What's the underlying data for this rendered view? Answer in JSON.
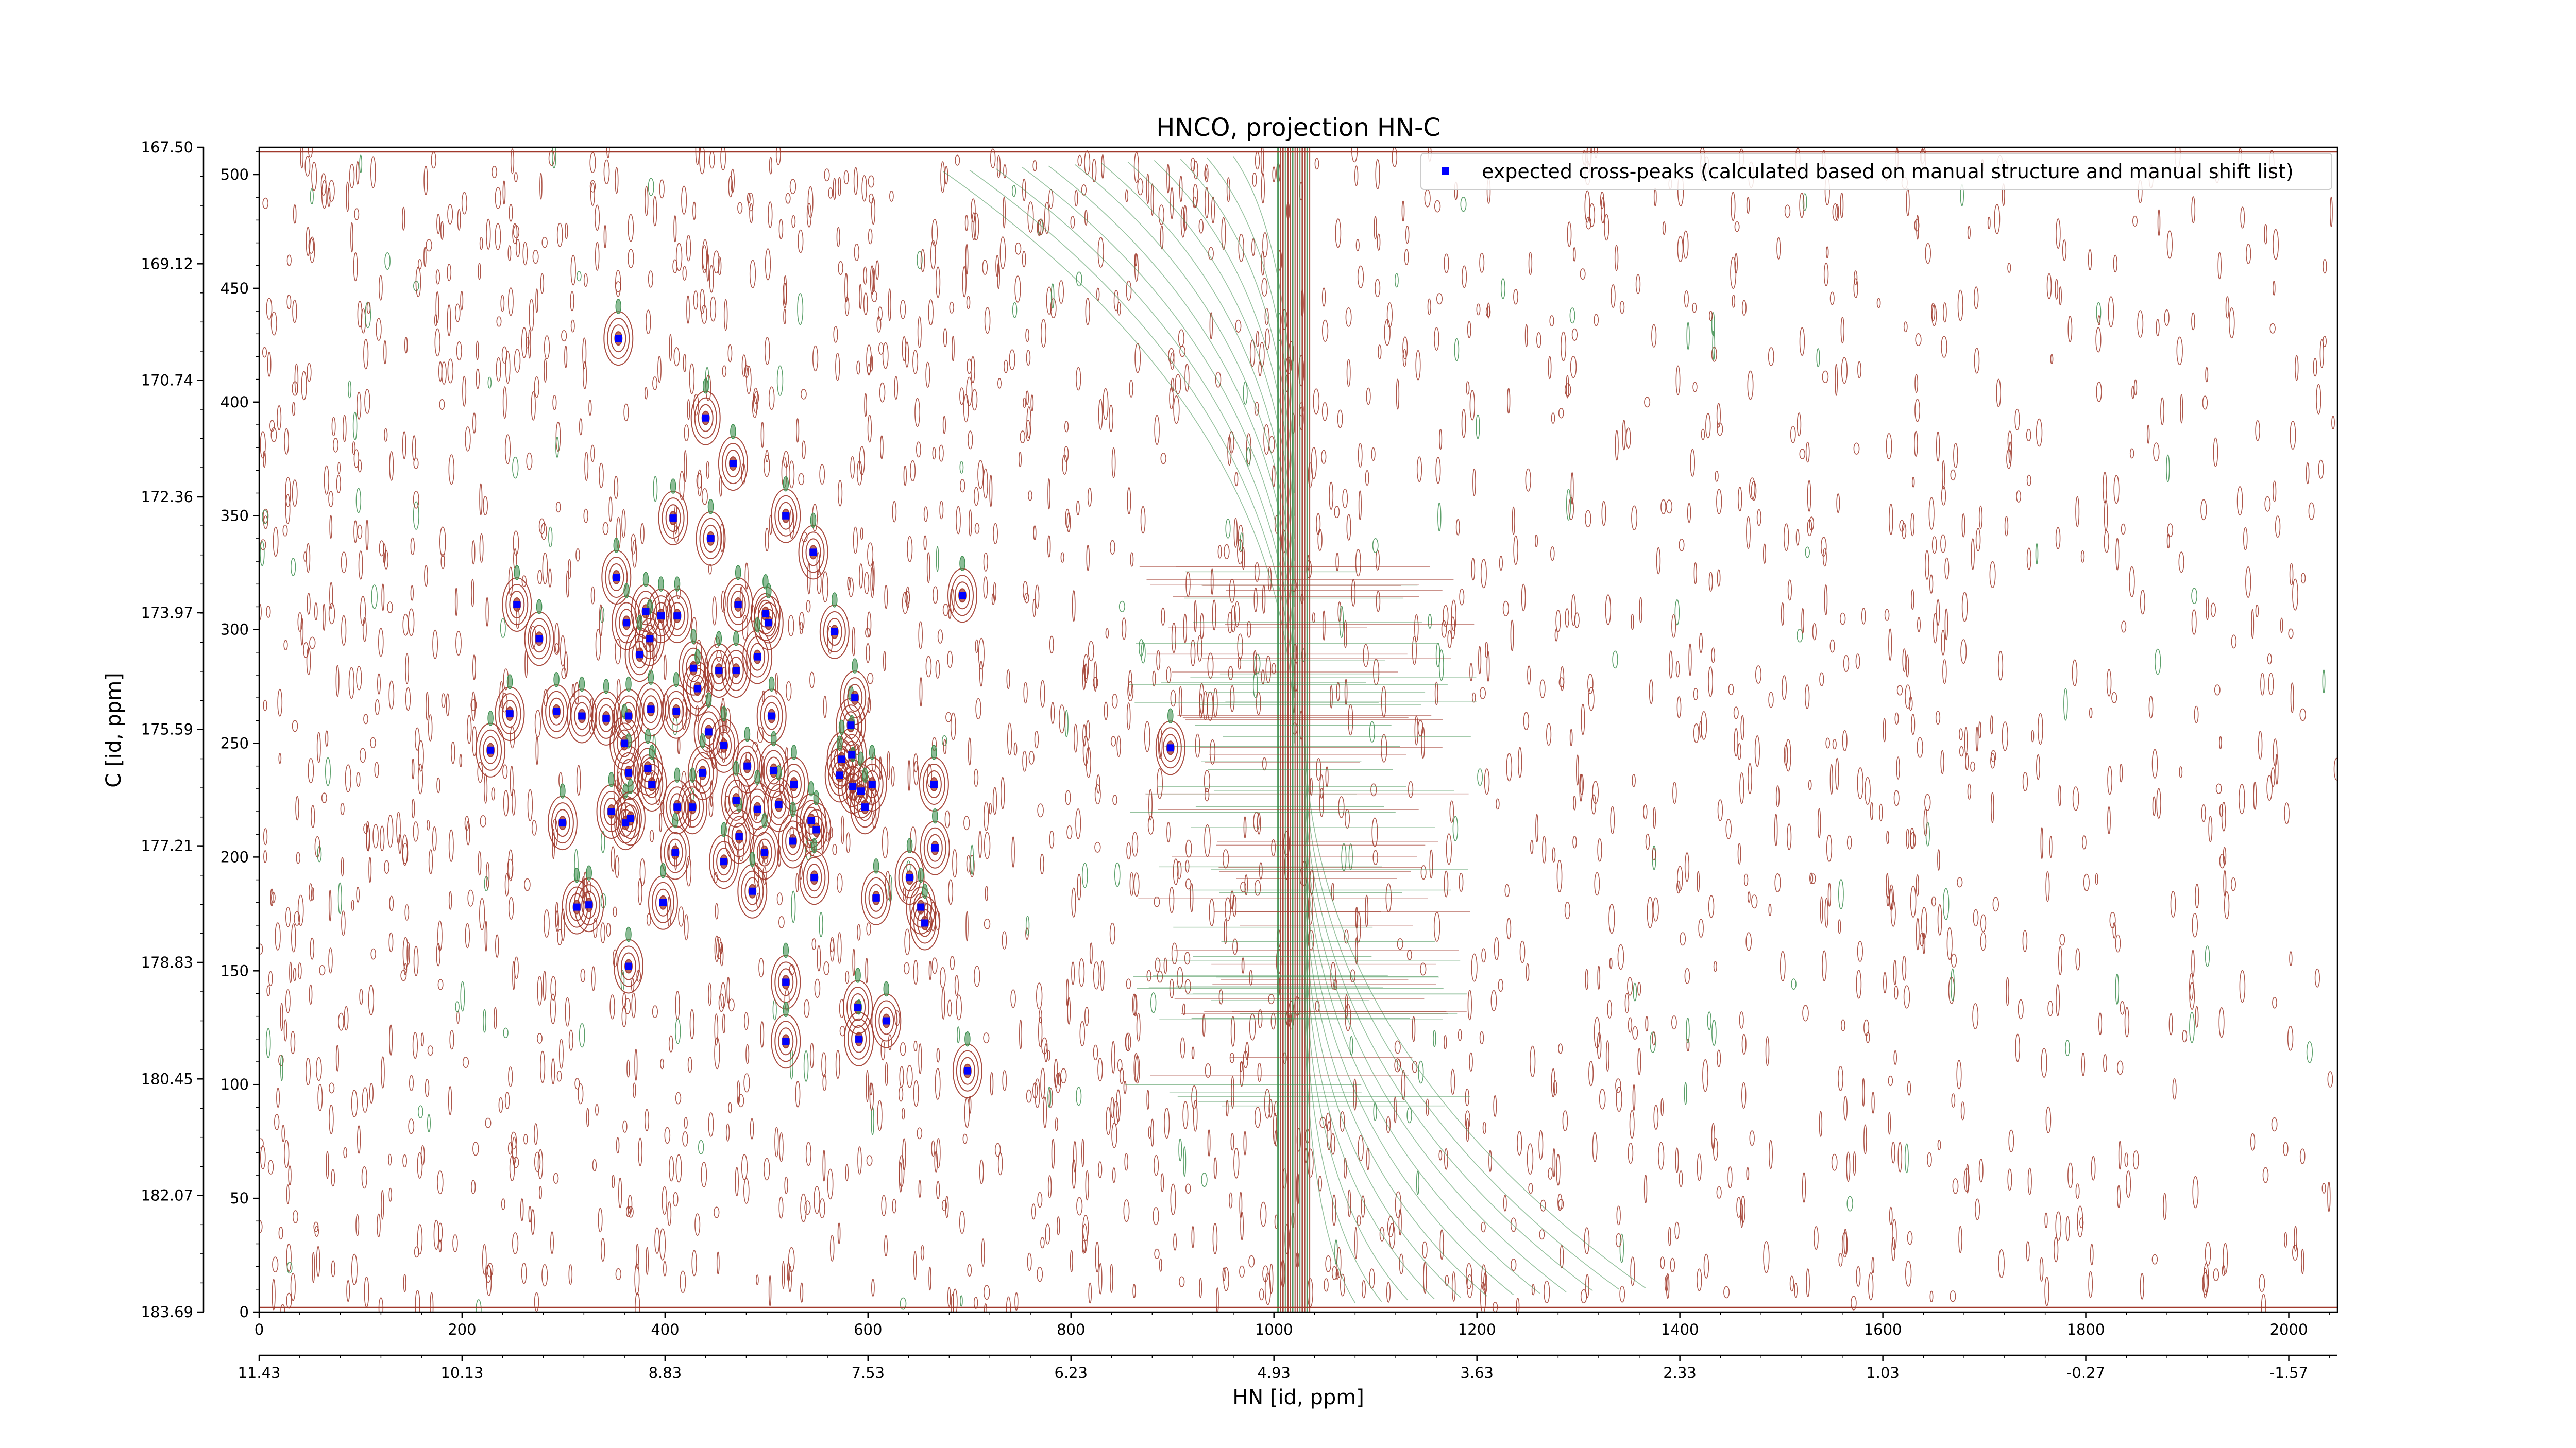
{
  "chart_data": {
    "type": "scatter",
    "title": "HNCO, projection HN-C",
    "xlabel": "HN [id, ppm]",
    "ylabel": "C [id, ppm]",
    "xlim": [
      0,
      2048
    ],
    "ylim": [
      0,
      512
    ],
    "x_ticks": [
      0,
      200,
      400,
      600,
      800,
      1000,
      1200,
      1400,
      1600,
      1800,
      2000
    ],
    "y_ticks": [
      0,
      50,
      100,
      150,
      200,
      250,
      300,
      350,
      400,
      450,
      500
    ],
    "x_ppm_ticks": [
      "11.43",
      "10.13",
      "8.83",
      "7.53",
      "6.23",
      "4.93",
      "3.63",
      "2.33",
      "1.03",
      "-0.27",
      "-1.57"
    ],
    "y_ppm_ticks": [
      "183.69",
      "182.07",
      "180.45",
      "178.83",
      "177.21",
      "175.59",
      "173.97",
      "172.36",
      "170.74",
      "169.12",
      "167.50"
    ],
    "y_ppm_values": [
      183.69,
      182.07,
      180.45,
      178.83,
      177.21,
      175.59,
      173.97,
      172.36,
      170.74,
      169.12,
      167.5
    ],
    "grid": false,
    "legend_position": "top-right",
    "background": "contour plot of HN-C projection (positive contours brown, negative contours green)",
    "contour_colors": {
      "positive": "#a0392b",
      "negative": "#3f8f50"
    },
    "series": [
      {
        "name": "expected cross-peaks (calculated based on manual structure and manual shift list)",
        "color": "#0000ff",
        "marker": "square",
        "points": [
          {
            "x": 354,
            "y": 428
          },
          {
            "x": 440,
            "y": 393
          },
          {
            "x": 467,
            "y": 373
          },
          {
            "x": 408,
            "y": 349
          },
          {
            "x": 445,
            "y": 340
          },
          {
            "x": 519,
            "y": 350
          },
          {
            "x": 546,
            "y": 334
          },
          {
            "x": 352,
            "y": 323
          },
          {
            "x": 254,
            "y": 311
          },
          {
            "x": 693,
            "y": 315
          },
          {
            "x": 276,
            "y": 296
          },
          {
            "x": 362,
            "y": 303
          },
          {
            "x": 381,
            "y": 308
          },
          {
            "x": 396,
            "y": 306
          },
          {
            "x": 412,
            "y": 306
          },
          {
            "x": 472,
            "y": 311
          },
          {
            "x": 499,
            "y": 307
          },
          {
            "x": 502,
            "y": 303
          },
          {
            "x": 567,
            "y": 299
          },
          {
            "x": 385,
            "y": 296
          },
          {
            "x": 375,
            "y": 289
          },
          {
            "x": 491,
            "y": 288
          },
          {
            "x": 428,
            "y": 283
          },
          {
            "x": 453,
            "y": 282
          },
          {
            "x": 470,
            "y": 282
          },
          {
            "x": 432,
            "y": 274
          },
          {
            "x": 247,
            "y": 263
          },
          {
            "x": 293,
            "y": 264
          },
          {
            "x": 318,
            "y": 262
          },
          {
            "x": 342,
            "y": 261
          },
          {
            "x": 364,
            "y": 262
          },
          {
            "x": 386,
            "y": 265
          },
          {
            "x": 411,
            "y": 264
          },
          {
            "x": 443,
            "y": 255
          },
          {
            "x": 505,
            "y": 262
          },
          {
            "x": 583,
            "y": 258
          },
          {
            "x": 587,
            "y": 270
          },
          {
            "x": 228,
            "y": 247
          },
          {
            "x": 360,
            "y": 250
          },
          {
            "x": 898,
            "y": 248
          },
          {
            "x": 458,
            "y": 249
          },
          {
            "x": 584,
            "y": 245
          },
          {
            "x": 574,
            "y": 243
          },
          {
            "x": 364,
            "y": 237
          },
          {
            "x": 383,
            "y": 239
          },
          {
            "x": 387,
            "y": 232
          },
          {
            "x": 437,
            "y": 237
          },
          {
            "x": 481,
            "y": 240
          },
          {
            "x": 507,
            "y": 238
          },
          {
            "x": 527,
            "y": 232
          },
          {
            "x": 572,
            "y": 236
          },
          {
            "x": 585,
            "y": 231
          },
          {
            "x": 593,
            "y": 229
          },
          {
            "x": 604,
            "y": 232
          },
          {
            "x": 665,
            "y": 232
          },
          {
            "x": 412,
            "y": 222
          },
          {
            "x": 427,
            "y": 222
          },
          {
            "x": 470,
            "y": 225
          },
          {
            "x": 491,
            "y": 221
          },
          {
            "x": 512,
            "y": 223
          },
          {
            "x": 544,
            "y": 216
          },
          {
            "x": 597,
            "y": 222
          },
          {
            "x": 299,
            "y": 215
          },
          {
            "x": 347,
            "y": 220
          },
          {
            "x": 361,
            "y": 215
          },
          {
            "x": 366,
            "y": 217
          },
          {
            "x": 473,
            "y": 209
          },
          {
            "x": 526,
            "y": 207
          },
          {
            "x": 549,
            "y": 212
          },
          {
            "x": 410,
            "y": 202
          },
          {
            "x": 458,
            "y": 198
          },
          {
            "x": 498,
            "y": 202
          },
          {
            "x": 547,
            "y": 191
          },
          {
            "x": 666,
            "y": 204
          },
          {
            "x": 641,
            "y": 191
          },
          {
            "x": 486,
            "y": 185
          },
          {
            "x": 313,
            "y": 178
          },
          {
            "x": 325,
            "y": 179
          },
          {
            "x": 398,
            "y": 180
          },
          {
            "x": 608,
            "y": 182
          },
          {
            "x": 652,
            "y": 178
          },
          {
            "x": 656,
            "y": 171
          },
          {
            "x": 364,
            "y": 152
          },
          {
            "x": 519,
            "y": 145
          },
          {
            "x": 590,
            "y": 134
          },
          {
            "x": 618,
            "y": 128
          },
          {
            "x": 519,
            "y": 119
          },
          {
            "x": 591,
            "y": 120
          },
          {
            "x": 698,
            "y": 106
          }
        ]
      }
    ]
  }
}
